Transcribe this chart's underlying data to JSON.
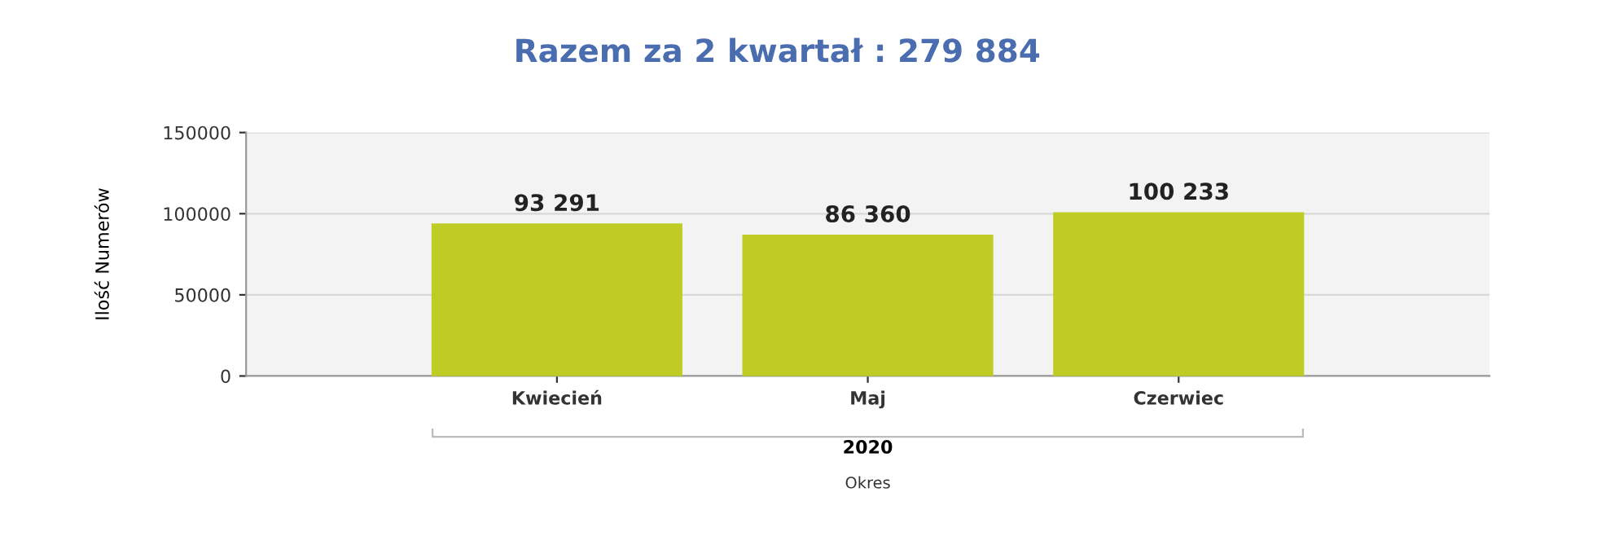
{
  "chart_data": {
    "type": "bar",
    "title": "Razem za 2 kwartał : 279 884",
    "ylabel": "Ilość Numerów",
    "xlabel": "Okres",
    "categories": [
      "Kwiecień",
      "Maj",
      "Czerwiec"
    ],
    "series": [
      {
        "color": "#bfcc26",
        "values": [
          93291,
          86360,
          100233
        ],
        "value_labels": [
          "93 291",
          "86 360",
          "100 233"
        ]
      }
    ],
    "ylim": [
      0,
      150000
    ],
    "yticks": [
      0,
      50000,
      100000,
      150000
    ],
    "grid": "y",
    "annotations": [
      "2020"
    ]
  }
}
